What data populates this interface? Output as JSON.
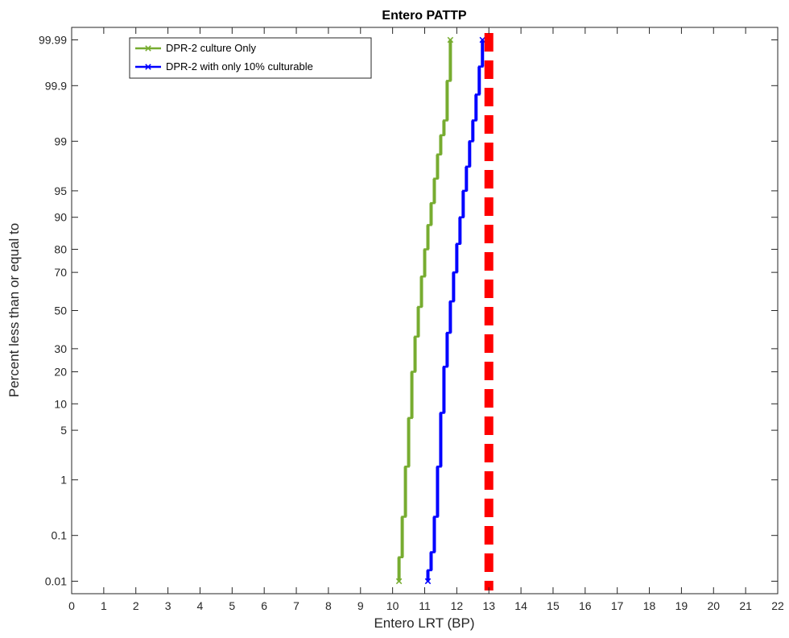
{
  "chart_data": {
    "type": "line",
    "title": "Entero PATTP",
    "xlabel": "Entero LRT (BP)",
    "ylabel": "Percent less than or equal to",
    "xlim": [
      0,
      22
    ],
    "x_ticks": [
      "0",
      "1",
      "2",
      "3",
      "4",
      "5",
      "6",
      "7",
      "8",
      "9",
      "10",
      "11",
      "12",
      "13",
      "14",
      "15",
      "16",
      "17",
      "18",
      "19",
      "20",
      "21",
      "22"
    ],
    "y_scale": "normal-probability",
    "ylim_percent": [
      0.005,
      99.995
    ],
    "y_ticks": [
      {
        "value": 0.01,
        "label": "0.01"
      },
      {
        "value": 0.1,
        "label": "0.1"
      },
      {
        "value": 1,
        "label": "1"
      },
      {
        "value": 5,
        "label": "5"
      },
      {
        "value": 10,
        "label": "10"
      },
      {
        "value": 20,
        "label": "20"
      },
      {
        "value": 30,
        "label": "30"
      },
      {
        "value": 50,
        "label": "50"
      },
      {
        "value": 70,
        "label": "70"
      },
      {
        "value": 80,
        "label": "80"
      },
      {
        "value": 90,
        "label": "90"
      },
      {
        "value": 95,
        "label": "95"
      },
      {
        "value": 99,
        "label": "99"
      },
      {
        "value": 99.9,
        "label": "99.9"
      },
      {
        "value": 99.99,
        "label": "99.99"
      }
    ],
    "grid": false,
    "legend_position": "top-left",
    "series": [
      {
        "name": "DPR-2 culture Only",
        "color": "#77ac30",
        "marker": "x",
        "steps": [
          {
            "x": 10.2,
            "p_from": 0.01,
            "p_to": 0.035
          },
          {
            "x": 10.3,
            "p_from": 0.035,
            "p_to": 0.23
          },
          {
            "x": 10.4,
            "p_from": 0.23,
            "p_to": 1.6
          },
          {
            "x": 10.5,
            "p_from": 1.6,
            "p_to": 7
          },
          {
            "x": 10.6,
            "p_from": 7,
            "p_to": 20
          },
          {
            "x": 10.7,
            "p_from": 20,
            "p_to": 36
          },
          {
            "x": 10.8,
            "p_from": 36,
            "p_to": 52
          },
          {
            "x": 10.9,
            "p_from": 52,
            "p_to": 68
          },
          {
            "x": 11.0,
            "p_from": 68,
            "p_to": 80
          },
          {
            "x": 11.1,
            "p_from": 80,
            "p_to": 88
          },
          {
            "x": 11.2,
            "p_from": 88,
            "p_to": 93
          },
          {
            "x": 11.3,
            "p_from": 93,
            "p_to": 96.5
          },
          {
            "x": 11.4,
            "p_from": 96.5,
            "p_to": 98.4
          },
          {
            "x": 11.5,
            "p_from": 98.4,
            "p_to": 99.2
          },
          {
            "x": 11.6,
            "p_from": 99.2,
            "p_to": 99.55
          },
          {
            "x": 11.7,
            "p_from": 99.55,
            "p_to": 99.92
          },
          {
            "x": 11.8,
            "p_from": 99.92,
            "p_to": 99.99
          }
        ]
      },
      {
        "name": "DPR-2 with only 10% culturable",
        "color": "#0000ff",
        "marker": "x",
        "steps": [
          {
            "x": 11.1,
            "p_from": 0.01,
            "p_to": 0.018
          },
          {
            "x": 11.2,
            "p_from": 0.018,
            "p_to": 0.045
          },
          {
            "x": 11.3,
            "p_from": 0.045,
            "p_to": 0.23
          },
          {
            "x": 11.4,
            "p_from": 0.23,
            "p_to": 1.6
          },
          {
            "x": 11.5,
            "p_from": 1.6,
            "p_to": 8
          },
          {
            "x": 11.6,
            "p_from": 8,
            "p_to": 22
          },
          {
            "x": 11.7,
            "p_from": 22,
            "p_to": 38
          },
          {
            "x": 11.8,
            "p_from": 38,
            "p_to": 55
          },
          {
            "x": 11.9,
            "p_from": 55,
            "p_to": 70
          },
          {
            "x": 12.0,
            "p_from": 70,
            "p_to": 82
          },
          {
            "x": 12.1,
            "p_from": 82,
            "p_to": 90
          },
          {
            "x": 12.2,
            "p_from": 90,
            "p_to": 95
          },
          {
            "x": 12.3,
            "p_from": 95,
            "p_to": 97.6
          },
          {
            "x": 12.4,
            "p_from": 97.6,
            "p_to": 99
          },
          {
            "x": 12.5,
            "p_from": 99,
            "p_to": 99.55
          },
          {
            "x": 12.6,
            "p_from": 99.55,
            "p_to": 99.85
          },
          {
            "x": 12.7,
            "p_from": 99.85,
            "p_to": 99.96
          },
          {
            "x": 12.8,
            "p_from": 99.96,
            "p_to": 99.99
          }
        ]
      }
    ],
    "reference_line": {
      "x": 13,
      "color": "#ff0000",
      "style": "dashed"
    }
  }
}
